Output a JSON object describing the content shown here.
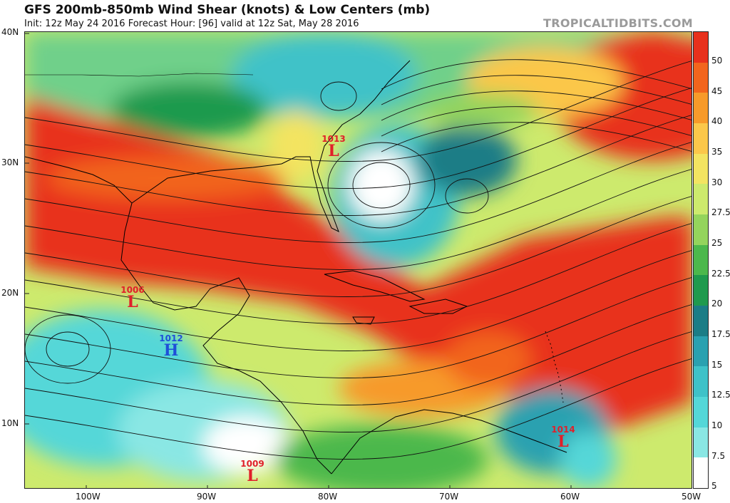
{
  "header": {
    "title": "GFS 200mb-850mb Wind Shear (knots) & Low Centers (mb)",
    "subtitle": "Init: 12z May 24 2016   Forecast Hour: [96]   valid at 12z Sat, May 28 2016",
    "brand": "TROPICALTIDBITS.COM"
  },
  "axes": {
    "lat_labels": [
      "40N",
      "30N",
      "20N",
      "10N"
    ],
    "lon_labels": [
      "100W",
      "90W",
      "80W",
      "70W",
      "60W",
      "50W"
    ]
  },
  "colorbar": {
    "labels": [
      "50",
      "45",
      "40",
      "35",
      "30",
      "27.5",
      "25",
      "22.5",
      "20",
      "17.5",
      "15",
      "12.5",
      "10",
      "7.5",
      "5"
    ],
    "colors": [
      "#e8311c",
      "#f2651d",
      "#f79a2a",
      "#fbc74a",
      "#f3e461",
      "#cdea6d",
      "#94d45c",
      "#4cb84c",
      "#1f9a4e",
      "#1b7d86",
      "#2aa1b0",
      "#3fc2c8",
      "#54d7d8",
      "#8ae7e4",
      "#ffffff"
    ],
    "units": "knots"
  },
  "pressure_centers": [
    {
      "type": "L",
      "value": "1013",
      "color": "#e0202a"
    },
    {
      "type": "L",
      "value": "1006",
      "color": "#e0202a"
    },
    {
      "type": "H",
      "value": "1012",
      "color": "#1f4fd8"
    },
    {
      "type": "L",
      "value": "1014",
      "color": "#e0202a"
    },
    {
      "type": "L",
      "value": "1009",
      "color": "#e0202a"
    }
  ]
}
